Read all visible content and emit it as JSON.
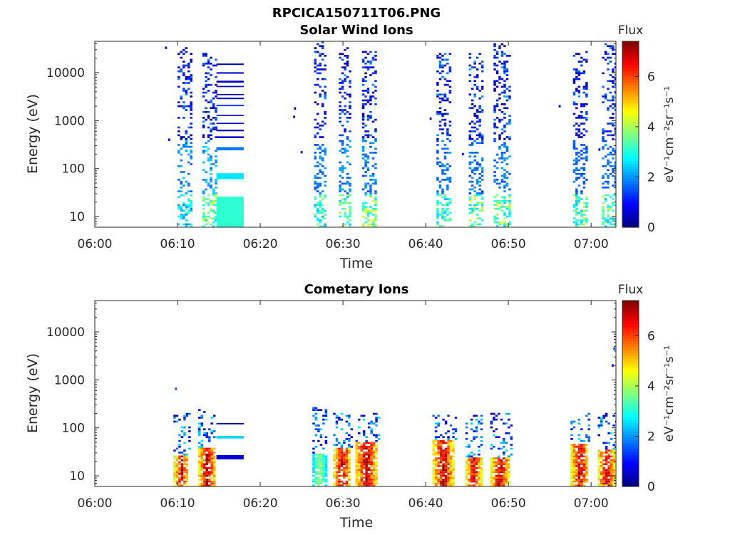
{
  "title": "RPCICA150711T06.PNG",
  "colorbar": {
    "label": "Flux",
    "unit_text": "eV⁻¹cm⁻²sr⁻¹s⁻¹",
    "range": [
      0,
      7.4
    ],
    "ticks": [
      "0",
      "2",
      "4",
      "6"
    ],
    "colormap": "jet"
  },
  "chart_data": [
    {
      "type": "heatmap",
      "title": "Solar Wind Ions",
      "xlabel": "Time",
      "ylabel": "Energy (eV)",
      "x_tick_labels": [
        "06:00",
        "06:10",
        "06:20",
        "06:30",
        "06:40",
        "06:50",
        "07:00"
      ],
      "x_range_minutes": [
        0,
        63
      ],
      "y_tick_labels": [
        "10",
        "100",
        "1000",
        "10000"
      ],
      "y_scale": "log",
      "y_range": [
        6,
        45000
      ],
      "value_range": [
        0,
        7.4
      ],
      "bursts": [
        {
          "start": 10.0,
          "end": 11.6,
          "low_flux": 3.0,
          "mid_flux": 2.2,
          "top_energy": 33000
        },
        {
          "start": 13.0,
          "end": 14.6,
          "low_flux": 4.0,
          "mid_flux": 2.4,
          "top_energy": 25000
        },
        {
          "start": 26.5,
          "end": 27.9,
          "low_flux": 3.5,
          "mid_flux": 2.0,
          "top_energy": 45000
        },
        {
          "start": 29.5,
          "end": 31.0,
          "low_flux": 3.8,
          "mid_flux": 2.0,
          "top_energy": 33000
        },
        {
          "start": 32.3,
          "end": 34.0,
          "low_flux": 4.2,
          "mid_flux": 2.0,
          "top_energy": 30000
        },
        {
          "start": 41.3,
          "end": 43.0,
          "low_flux": 3.5,
          "mid_flux": 2.0,
          "top_energy": 25000
        },
        {
          "start": 45.2,
          "end": 46.8,
          "low_flux": 4.0,
          "mid_flux": 1.9,
          "top_energy": 25000
        },
        {
          "start": 48.2,
          "end": 50.0,
          "low_flux": 4.0,
          "mid_flux": 1.9,
          "top_energy": 40000
        },
        {
          "start": 57.8,
          "end": 59.5,
          "low_flux": 3.8,
          "mid_flux": 1.8,
          "top_energy": 27000
        },
        {
          "start": 61.3,
          "end": 63.0,
          "low_flux": 3.8,
          "mid_flux": 1.9,
          "top_energy": 40000
        }
      ],
      "steady_block": {
        "start": 14.7,
        "end": 18.0,
        "levels": [
          {
            "energy_low": 6,
            "energy_high": 26,
            "flux": 3.1
          },
          {
            "energy_low": 60,
            "energy_high": 80,
            "flux": 2.6
          },
          {
            "energy_low": 240,
            "energy_high": 280,
            "flux": 1.8
          },
          {
            "energy_low": 430,
            "energy_high": 470,
            "flux": 0.5
          },
          {
            "energy_low": 600,
            "energy_high": 650,
            "flux": 0.4
          },
          {
            "energy_low": 850,
            "energy_high": 900,
            "flux": 0.6
          },
          {
            "energy_low": 1250,
            "energy_high": 1320,
            "flux": 0.5
          },
          {
            "energy_low": 2000,
            "energy_high": 2150,
            "flux": 1.4
          },
          {
            "energy_low": 2800,
            "energy_high": 3000,
            "flux": 0.5
          },
          {
            "energy_low": 3400,
            "energy_high": 3600,
            "flux": 0.4
          },
          {
            "energy_low": 5000,
            "energy_high": 5300,
            "flux": 0.6
          },
          {
            "energy_low": 6200,
            "energy_high": 6800,
            "flux": 0.5
          },
          {
            "energy_low": 9500,
            "energy_high": 10200,
            "flux": 0.6
          },
          {
            "energy_low": 14500,
            "energy_high": 15500,
            "flux": 0.4
          }
        ]
      }
    },
    {
      "type": "heatmap",
      "title": "Cometary Ions",
      "xlabel": "Time",
      "ylabel": "Energy (eV)",
      "x_tick_labels": [
        "06:00",
        "06:10",
        "06:20",
        "06:30",
        "06:40",
        "06:50",
        "07:00"
      ],
      "x_range_minutes": [
        0,
        63
      ],
      "y_tick_labels": [
        "10",
        "100",
        "1000",
        "10000"
      ],
      "y_scale": "log",
      "y_range": [
        6,
        45000
      ],
      "value_range": [
        0,
        7.4
      ],
      "bursts": [
        {
          "start": 9.5,
          "end": 11.5,
          "peak_flux": 6.8,
          "core_top": 26,
          "spray_top": 200
        },
        {
          "start": 12.5,
          "end": 14.6,
          "peak_flux": 7.2,
          "core_top": 40,
          "spray_top": 240
        },
        {
          "start": 26.3,
          "end": 28.0,
          "peak_flux": 4.0,
          "core_top": 30,
          "spray_top": 300
        },
        {
          "start": 28.8,
          "end": 31.0,
          "peak_flux": 7.0,
          "core_top": 40,
          "spray_top": 200
        },
        {
          "start": 31.5,
          "end": 34.2,
          "peak_flux": 7.2,
          "core_top": 50,
          "spray_top": 200
        },
        {
          "start": 40.8,
          "end": 43.5,
          "peak_flux": 7.0,
          "core_top": 55,
          "spray_top": 180
        },
        {
          "start": 44.8,
          "end": 46.8,
          "peak_flux": 7.0,
          "core_top": 24,
          "spray_top": 180
        },
        {
          "start": 47.8,
          "end": 50.2,
          "peak_flux": 7.1,
          "core_top": 25,
          "spray_top": 200
        },
        {
          "start": 57.5,
          "end": 59.8,
          "peak_flux": 7.0,
          "core_top": 45,
          "spray_top": 200
        },
        {
          "start": 60.8,
          "end": 63.0,
          "peak_flux": 7.0,
          "core_top": 35,
          "spray_top": 200
        }
      ],
      "steady_block": {
        "start": 14.7,
        "end": 18.0,
        "levels": [
          {
            "energy_low": 22,
            "energy_high": 27,
            "flux": 0.6
          },
          {
            "energy_low": 60,
            "energy_high": 68,
            "flux": 2.5
          },
          {
            "energy_low": 118,
            "energy_high": 126,
            "flux": 0.3
          }
        ]
      },
      "isolated_points": [
        {
          "minute": 9.8,
          "energy": 650,
          "flux": 1.6
        },
        {
          "minute": 62.8,
          "energy": 4500,
          "flux": 1.6
        },
        {
          "minute": 62.6,
          "energy": 2000,
          "flux": 0.9
        }
      ]
    }
  ]
}
